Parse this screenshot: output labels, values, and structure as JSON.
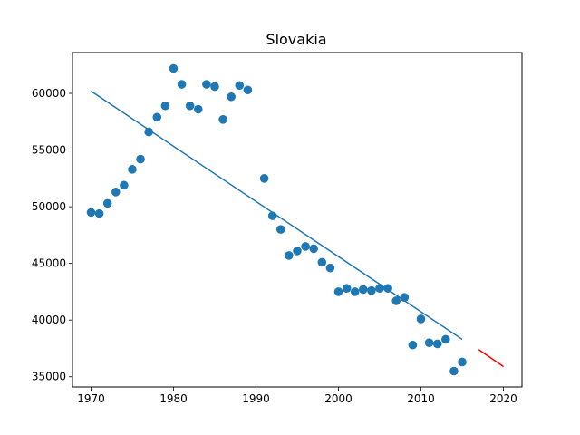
{
  "chart_data": {
    "type": "scatter",
    "title": "Slovakia",
    "xlabel": "",
    "ylabel": "",
    "xlim": [
      1967.75,
      2022.25
    ],
    "ylim": [
      34100,
      63600
    ],
    "x_ticks": [
      1970,
      1980,
      1990,
      2000,
      2010,
      2020
    ],
    "y_ticks": [
      35000,
      40000,
      45000,
      50000,
      55000,
      60000
    ],
    "grid": false,
    "series": [
      {
        "type": "scatter",
        "color": "#1f77b4",
        "points": [
          [
            1970,
            49500
          ],
          [
            1971,
            49400
          ],
          [
            1972,
            50300
          ],
          [
            1973,
            51300
          ],
          [
            1974,
            51900
          ],
          [
            1975,
            53300
          ],
          [
            1976,
            54200
          ],
          [
            1977,
            56600
          ],
          [
            1978,
            57900
          ],
          [
            1979,
            58900
          ],
          [
            1980,
            62200
          ],
          [
            1981,
            60800
          ],
          [
            1982,
            58900
          ],
          [
            1983,
            58600
          ],
          [
            1984,
            60800
          ],
          [
            1985,
            60600
          ],
          [
            1986,
            57700
          ],
          [
            1987,
            59700
          ],
          [
            1988,
            60700
          ],
          [
            1989,
            60300
          ],
          [
            1991,
            52500
          ],
          [
            1992,
            49200
          ],
          [
            1993,
            48000
          ],
          [
            1994,
            45700
          ],
          [
            1995,
            46100
          ],
          [
            1996,
            46500
          ],
          [
            1997,
            46300
          ],
          [
            1998,
            45100
          ],
          [
            1999,
            44600
          ],
          [
            2000,
            42500
          ],
          [
            2001,
            42800
          ],
          [
            2002,
            42500
          ],
          [
            2003,
            42700
          ],
          [
            2004,
            42600
          ],
          [
            2005,
            42800
          ],
          [
            2006,
            42800
          ],
          [
            2007,
            41700
          ],
          [
            2008,
            42000
          ],
          [
            2009,
            37800
          ],
          [
            2010,
            40100
          ],
          [
            2011,
            38000
          ],
          [
            2012,
            37900
          ],
          [
            2013,
            38300
          ],
          [
            2014,
            35500
          ],
          [
            2015,
            36300
          ]
        ]
      },
      {
        "type": "line",
        "color": "#1f77b4",
        "points": [
          [
            1970,
            60200
          ],
          [
            2015,
            38300
          ]
        ]
      },
      {
        "type": "line",
        "color": "#ff0000",
        "points": [
          [
            2017,
            37400
          ],
          [
            2020,
            35900
          ]
        ]
      }
    ]
  }
}
